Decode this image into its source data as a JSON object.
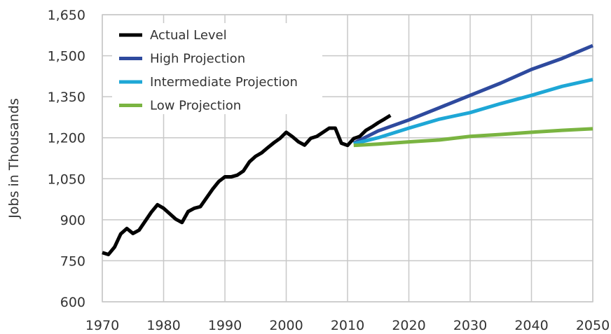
{
  "chart_data": {
    "type": "line",
    "title": "",
    "xlabel": "",
    "ylabel": "Jobs in Thousands",
    "xlim": [
      1970,
      2050
    ],
    "ylim": [
      600,
      1650
    ],
    "xticks": [
      1970,
      1980,
      1990,
      2000,
      2010,
      2020,
      2030,
      2040,
      2050
    ],
    "yticks": [
      600,
      750,
      900,
      1050,
      1200,
      1350,
      1500,
      1650
    ],
    "xtick_labels": [
      "1970",
      "1980",
      "1990",
      "2000",
      "2010",
      "2020",
      "2030",
      "2040",
      "2050"
    ],
    "ytick_labels": [
      "600",
      "750",
      "900",
      "1,050",
      "1,200",
      "1,350",
      "1,500",
      "1,650"
    ],
    "grid": true,
    "legend_position": "top-left",
    "series": [
      {
        "name": "Actual Level",
        "color": "#000000",
        "x": [
          1970,
          1971,
          1972,
          1973,
          1974,
          1975,
          1976,
          1977,
          1978,
          1979,
          1980,
          1981,
          1982,
          1983,
          1984,
          1985,
          1986,
          1987,
          1988,
          1989,
          1990,
          1991,
          1992,
          1993,
          1994,
          1995,
          1996,
          1997,
          1998,
          1999,
          2000,
          2001,
          2002,
          2003,
          2004,
          2005,
          2006,
          2007,
          2008,
          2009,
          2010,
          2011,
          2012,
          2013,
          2014,
          2015,
          2016,
          2017
        ],
        "y": [
          780,
          773,
          800,
          848,
          868,
          850,
          862,
          895,
          928,
          955,
          942,
          922,
          902,
          890,
          930,
          942,
          948,
          980,
          1012,
          1040,
          1057,
          1057,
          1063,
          1078,
          1112,
          1132,
          1145,
          1164,
          1182,
          1198,
          1220,
          1204,
          1185,
          1173,
          1198,
          1205,
          1220,
          1235,
          1235,
          1180,
          1172,
          1197,
          1205,
          1227,
          1240,
          1255,
          1268,
          1282
        ]
      },
      {
        "name": "High Projection",
        "color": "#2e4a9e",
        "x": [
          2011,
          2015,
          2020,
          2025,
          2030,
          2035,
          2040,
          2045,
          2050
        ],
        "y": [
          1180,
          1225,
          1265,
          1310,
          1355,
          1400,
          1450,
          1490,
          1537
        ]
      },
      {
        "name": "Intermediate Projection",
        "color": "#1ea7d6",
        "x": [
          2011,
          2015,
          2020,
          2025,
          2030,
          2035,
          2040,
          2045,
          2050
        ],
        "y": [
          1178,
          1200,
          1235,
          1268,
          1292,
          1325,
          1355,
          1388,
          1413
        ]
      },
      {
        "name": "Low Projection",
        "color": "#7ab441",
        "x": [
          2011,
          2015,
          2020,
          2025,
          2030,
          2035,
          2040,
          2045,
          2050
        ],
        "y": [
          1172,
          1177,
          1185,
          1192,
          1205,
          1212,
          1220,
          1227,
          1233
        ]
      }
    ]
  }
}
